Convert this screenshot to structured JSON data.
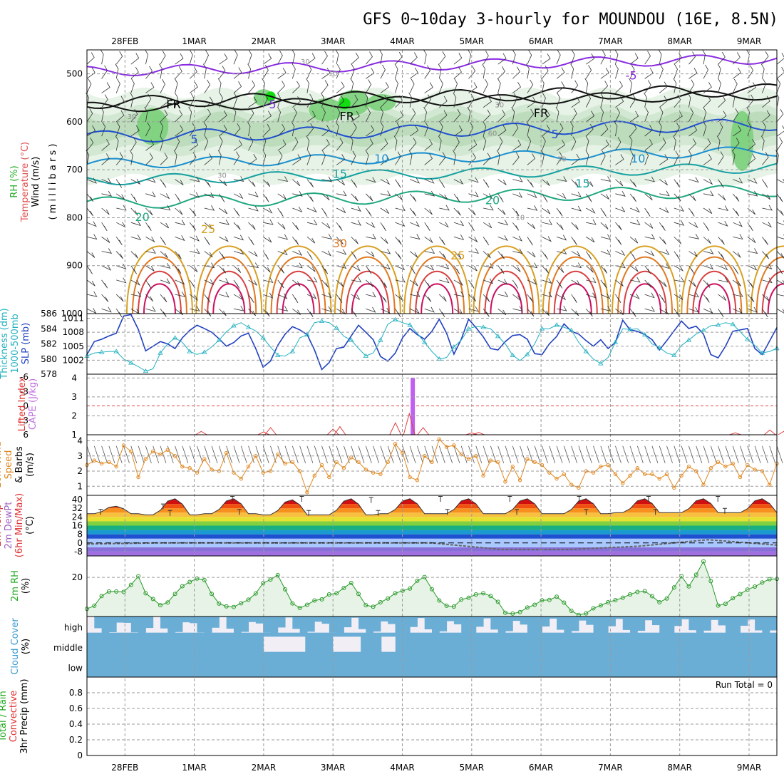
{
  "title": "GFS 0~10day 3-hourly for MOUNDOU (16E, 8.5N)",
  "chart_data": [
    {
      "type": "contour",
      "id": "profile",
      "dates": [
        "28FEB",
        "1MAR",
        "2MAR",
        "3MAR",
        "4MAR",
        "5MAR",
        "6MAR",
        "7MAR",
        "8MAR",
        "9MAR"
      ],
      "ylabel_parts": [
        {
          "text": "RH (%)",
          "color": "#22aa22"
        },
        {
          "text": "Temperature (°C)",
          "color": "#e05050"
        },
        {
          "text": "Wind (m/s)",
          "color": "#000000"
        }
      ],
      "ylabel2": "( m i l l i b a r s )",
      "yticks": [
        500,
        600,
        700,
        800,
        900,
        1000
      ],
      "ylim": [
        450,
        1000
      ],
      "contour_labels": [
        {
          "text": "-5",
          "day": 7.3,
          "p": 505,
          "color": "#8a2be2"
        },
        {
          "text": "-5",
          "day": 2.1,
          "p": 565,
          "color": "#8a2be2"
        },
        {
          "text": "FR",
          "day": 0.7,
          "p": 565,
          "color": "#000000"
        },
        {
          "text": "FR",
          "day": 3.2,
          "p": 590,
          "color": "#000000"
        },
        {
          "text": "FR",
          "day": 6.0,
          "p": 583,
          "color": "#000000"
        },
        {
          "text": "5",
          "day": 1.0,
          "p": 638,
          "color": "#2050d0"
        },
        {
          "text": "5",
          "day": 6.2,
          "p": 628,
          "color": "#2050d0"
        },
        {
          "text": "10",
          "day": 3.7,
          "p": 678,
          "color": "#1a8fd0"
        },
        {
          "text": "10",
          "day": 7.4,
          "p": 678,
          "color": "#1a8fd0"
        },
        {
          "text": "15",
          "day": 3.1,
          "p": 710,
          "color": "#14a0a0"
        },
        {
          "text": "15",
          "day": 6.6,
          "p": 730,
          "color": "#14a0a0"
        },
        {
          "text": "20",
          "day": 0.25,
          "p": 800,
          "color": "#20a880"
        },
        {
          "text": "20",
          "day": 5.3,
          "p": 765,
          "color": "#20a880"
        },
        {
          "text": "25",
          "day": 1.2,
          "p": 825,
          "color": "#d8a020"
        },
        {
          "text": "25",
          "day": 4.8,
          "p": 880,
          "color": "#d8a020"
        },
        {
          "text": "30",
          "day": 3.1,
          "p": 855,
          "color": "#e07820"
        },
        {
          "text": "30",
          "day": 2.6,
          "p": 475,
          "color": "#909090"
        },
        {
          "text": "30",
          "day": 0.1,
          "p": 590,
          "color": "#909090"
        },
        {
          "text": "30",
          "day": 1.4,
          "p": 712,
          "color": "#909090"
        },
        {
          "text": "30",
          "day": 6.3,
          "p": 678,
          "color": "#909090"
        },
        {
          "text": "30",
          "day": 5.4,
          "p": 565,
          "color": "#909090"
        },
        {
          "text": "60",
          "day": 5.3,
          "p": 625,
          "color": "#909090"
        },
        {
          "text": "10",
          "day": 3.0,
          "p": 500,
          "color": "#909090"
        },
        {
          "text": "10",
          "day": 5.7,
          "p": 800,
          "color": "#909090"
        }
      ]
    },
    {
      "type": "line",
      "id": "slp_thickness",
      "ylabel_parts": [
        {
          "text": "Thickness (dm)",
          "color": "#22b0c0"
        },
        {
          "text": "1000-500mb",
          "color": "#22b0c0"
        },
        {
          "text": "SLP (mb)",
          "color": "#2040c0"
        }
      ],
      "yticks_left": [
        586,
        584,
        582,
        580,
        578
      ],
      "yticks_right": [
        1011,
        1008,
        1005,
        1002
      ],
      "series": [
        {
          "name": "SLP",
          "color": "#2040c0",
          "values": [
            1003.2,
            1006.0,
            1006.5,
            1007.2,
            1007.8,
            1011.5,
            1011.8,
            1008.6,
            1004.0,
            1005.0,
            1006.0,
            1005.5,
            1004.5,
            1006.8,
            1008.4,
            1009.5,
            1008.8,
            1008.0,
            1006.6,
            1005.0,
            1005.8,
            1007.2,
            1007.8,
            1004.5,
            1000.5,
            1001.8,
            1005.2,
            1007.6,
            1009.2,
            1008.5,
            1007.5,
            1004.2,
            1000.0,
            1001.5,
            1004.5,
            1004.8,
            1007.2,
            1009.5,
            1008.0,
            1006.4,
            1002.8,
            1001.8,
            1003.5,
            1006.8,
            1008.8,
            1007.5,
            1006.5,
            1008.2,
            1010.8,
            1007.8,
            1003.3,
            1006.5,
            1010.8,
            1009.0,
            1007.0,
            1004.5,
            1004.2,
            1006.0,
            1007.3,
            1007.5,
            1006.5,
            1003.4,
            1003.2,
            1005.5,
            1007.1,
            1009.8,
            1008.2,
            1007.6,
            1006.2,
            1005.0,
            1006.4,
            1004.5,
            1005.8,
            1010.6,
            1008.5,
            1008.2,
            1007.5,
            1006.4,
            1004.2,
            1006.2,
            1008.3,
            1010.4,
            1008.8,
            1009.3,
            1007.6,
            1003.2,
            1002.5,
            1005.0,
            1008.2,
            1008.5,
            1008.8,
            1004.5,
            1003.2,
            1006.1,
            1009.0
          ]
        },
        {
          "name": "Thickness",
          "color": "#22b0c0",
          "values": [
            580.4,
            580.8,
            580.9,
            581.0,
            581.0,
            580.0,
            579.5,
            579.0,
            578.4,
            578.7,
            580.8,
            582.0,
            582.8,
            582.2,
            581.0,
            580.6,
            580.9,
            581.6,
            582.5,
            583.6,
            584.4,
            584.8,
            584.2,
            583.7,
            582.8,
            581.6,
            580.5,
            580.4,
            581.0,
            582.8,
            583.2,
            584.8,
            585.0,
            584.8,
            584.1,
            583.0,
            582.5,
            581.4,
            580.4,
            580.8,
            582.5,
            584.6,
            585.2,
            584.8,
            584.5,
            583.4,
            582.2,
            581.0,
            580.0,
            580.2,
            581.6,
            582.5,
            584.0,
            584.3,
            584.2,
            584.0,
            583.0,
            582.0,
            580.5,
            579.8,
            580.6,
            582.0,
            584.0,
            584.0,
            584.5,
            584.2,
            583.8,
            582.2,
            581.0,
            580.0,
            579.4,
            580.2,
            582.2,
            584.0,
            583.9,
            584.0,
            583.2,
            582.0,
            581.5,
            580.8,
            580.5,
            581.8,
            582.5,
            583.3,
            583.8,
            584.4,
            584.5,
            584.8,
            584.6,
            583.6,
            582.6,
            581.8,
            580.8,
            581.0,
            581.4
          ]
        }
      ]
    },
    {
      "type": "bar",
      "id": "cape_li",
      "ylabel_parts": [
        {
          "text": "Lifted Index",
          "color": "#e03030"
        },
        {
          "text": "CAPE (J/kg)",
          "color": "#c070e0"
        }
      ],
      "yticks_left": [
        -6,
        -3,
        0,
        3,
        6
      ],
      "yticks_right": [
        4,
        3,
        2,
        1
      ],
      "cape_bar": {
        "day": 4.15,
        "value": 4,
        "color": "#c060f0"
      },
      "li_zero_line": 0,
      "li_series_color": "#e04040",
      "li_bumps": [
        {
          "day": 1.1,
          "v": 5.3
        },
        {
          "day": 2.0,
          "v": 5.4
        },
        {
          "day": 2.1,
          "v": 4.5
        },
        {
          "day": 3.0,
          "v": 4.8
        },
        {
          "day": 3.1,
          "v": 4.3
        },
        {
          "day": 3.9,
          "v": 3.5
        },
        {
          "day": 4.1,
          "v": 1.6
        },
        {
          "day": 4.3,
          "v": 4.5
        },
        {
          "day": 5.0,
          "v": 5.6
        },
        {
          "day": 5.1,
          "v": 5.5
        },
        {
          "day": 8.8,
          "v": 5.6
        },
        {
          "day": 9.3,
          "v": 5.0
        },
        {
          "day": 9.5,
          "v": 5.3
        },
        {
          "day": 9.6,
          "v": 4.3
        }
      ]
    },
    {
      "type": "line",
      "id": "wind10m",
      "ylabel_parts": [
        {
          "text": "10m Wind",
          "color": "#e08820"
        },
        {
          "text": "Speed",
          "color": "#e08820"
        },
        {
          "text": "& Barbs",
          "color": "#000000"
        },
        {
          "text": "(m/s)",
          "color": "#000000"
        }
      ],
      "yticks": [
        1,
        2,
        3,
        4
      ],
      "ylim": [
        0.4,
        4.4
      ],
      "series": [
        {
          "name": "10m Wind Speed",
          "color": "#e08820",
          "values": [
            2.4,
            2.7,
            2.5,
            2.6,
            2.3,
            3.7,
            3.3,
            1.6,
            2.8,
            3.3,
            3.1,
            3.4,
            3.0,
            2.3,
            2.2,
            1.9,
            2.8,
            2.1,
            2.0,
            3.2,
            1.9,
            1.5,
            2.3,
            3.0,
            1.9,
            2.0,
            3.1,
            2.5,
            2.6,
            2.0,
            0.6,
            1.7,
            2.4,
            1.6,
            2.6,
            2.2,
            2.9,
            2.6,
            2.1,
            1.9,
            1.8,
            2.6,
            3.8,
            3.2,
            1.6,
            1.4,
            3.0,
            2.6,
            4.1,
            3.6,
            3.7,
            3.1,
            2.8,
            3.0,
            1.7,
            2.7,
            2.6,
            1.3,
            2.3,
            1.4,
            2.8,
            2.6,
            2.4,
            1.9,
            1.5,
            1.8,
            1.1,
            0.9,
            2.0,
            1.9,
            2.3,
            2.4,
            1.8,
            1.2,
            1.7,
            2.2,
            1.8,
            1.8,
            1.5,
            1.8,
            0.9,
            1.7,
            2.3,
            2.0,
            1.1,
            2.2,
            2.6,
            2.3,
            2.5,
            1.6,
            2.4,
            2.1,
            2.0,
            1.1,
            2.5
          ]
        }
      ]
    },
    {
      "type": "area",
      "id": "temp2m",
      "ylabel_parts": [
        {
          "text": "2m Temp",
          "color": "#e03030"
        },
        {
          "text": "2m DewPt",
          "color": "#a060c0"
        },
        {
          "text": "(6hr Min/Max)",
          "color": "#e03030"
        },
        {
          "text": "(°C)",
          "color": "#000000"
        }
      ],
      "yticks": [
        40,
        32,
        24,
        16,
        8,
        0,
        -8
      ],
      "ylim": [
        -12,
        44
      ],
      "temp_bands": [
        {
          "from": -12,
          "to": -8,
          "color": "#a070e0"
        },
        {
          "from": -8,
          "to": -4,
          "color": "#8870d8"
        },
        {
          "from": -4,
          "to": 4,
          "color": "#a8c8ff"
        },
        {
          "from": 4,
          "to": 8,
          "color": "#1e50d0"
        },
        {
          "from": 8,
          "to": 12,
          "color": "#1a9ad0"
        },
        {
          "from": 12,
          "to": 16,
          "color": "#18b080"
        },
        {
          "from": 16,
          "to": 20,
          "color": "#80d040"
        },
        {
          "from": 20,
          "to": 24,
          "color": "#e8e030"
        },
        {
          "from": 24,
          "to": 28,
          "color": "#f8c040"
        },
        {
          "from": 28,
          "to": 32,
          "color": "#f89020"
        },
        {
          "from": 32,
          "to": 36,
          "color": "#f05010"
        },
        {
          "from": 36,
          "to": 40,
          "color": "#d01010"
        },
        {
          "from": 40,
          "to": 44,
          "color": "#900000"
        }
      ],
      "tmax": [
        34,
        41,
        41,
        40,
        41,
        41,
        41,
        41,
        41,
        41
      ],
      "tmin": [
        27,
        26,
        27,
        26,
        26,
        27,
        27,
        27,
        27,
        28
      ],
      "dewpoint": [
        -1,
        0,
        0,
        0,
        0,
        0,
        -6,
        -6,
        -3,
        3,
        -2
      ]
    },
    {
      "type": "area",
      "id": "rh2m",
      "ylabel_parts": [
        {
          "text": "2m RH",
          "color": "#22aa22"
        },
        {
          "text": "(%)",
          "color": "#000000"
        }
      ],
      "yticks": [
        20
      ],
      "ylim": [
        0,
        31
      ],
      "series": [
        {
          "name": "2m RH",
          "color": "#2a9a2a",
          "values": [
            3.9,
            5.5,
            10.5,
            12.8,
            12.8,
            12.6,
            16.2,
            20.6,
            11.9,
            9.0,
            5.8,
            7.2,
            11.6,
            15.5,
            17.7,
            19.4,
            18.7,
            11.6,
            6.6,
            5.2,
            4.9,
            6.8,
            8.6,
            11.8,
            17.1,
            18.9,
            21.2,
            13.9,
            6.7,
            4.4,
            6.0,
            8.2,
            8.8,
            11.3,
            11.9,
            14.6,
            17.2,
            11.6,
            5.8,
            5.0,
            7.3,
            9.2,
            11.9,
            13.2,
            14.3,
            18.3,
            20.2,
            14.0,
            8.2,
            5.5,
            5.1,
            8.7,
            9.6,
            11.3,
            11.9,
            10.5,
            7.5,
            1.9,
            1.5,
            2.3,
            4.6,
            6.0,
            8.3,
            8.5,
            10.1,
            7.1,
            2.9,
            0.8,
            1.6,
            4.2,
            5.7,
            7.3,
            8.4,
            9.6,
            11.3,
            12.6,
            13.0,
            10.4,
            7.3,
            9.2,
            14.9,
            20.6,
            15.4,
            21.4,
            28.2,
            18.1,
            5.6,
            6.5,
            9.4,
            11.5,
            13.8,
            15.3,
            17.4,
            19.1,
            19.3
          ]
        }
      ]
    },
    {
      "type": "heatmap",
      "id": "cloud",
      "ylabel_parts": [
        {
          "text": "Cloud Cover",
          "color": "#3a9ad0"
        },
        {
          "text": "(%)",
          "color": "#000000"
        }
      ],
      "levels": [
        "high",
        "middle",
        "low"
      ],
      "fill_color": "#6aaed6",
      "empty_color": "#f2eef6"
    },
    {
      "type": "bar",
      "id": "precip",
      "ylabel_parts": [
        {
          "text": "Total / Rain",
          "color": "#22aa22"
        },
        {
          "text": "Convective",
          "color": "#e03030"
        },
        {
          "text": "3hr Precip (mm)",
          "color": "#000000"
        }
      ],
      "yticks": [
        0,
        0.2,
        0.4,
        0.6,
        0.8
      ],
      "ylim": [
        0,
        1
      ],
      "annotation": "Run Total = 0",
      "values": []
    }
  ]
}
